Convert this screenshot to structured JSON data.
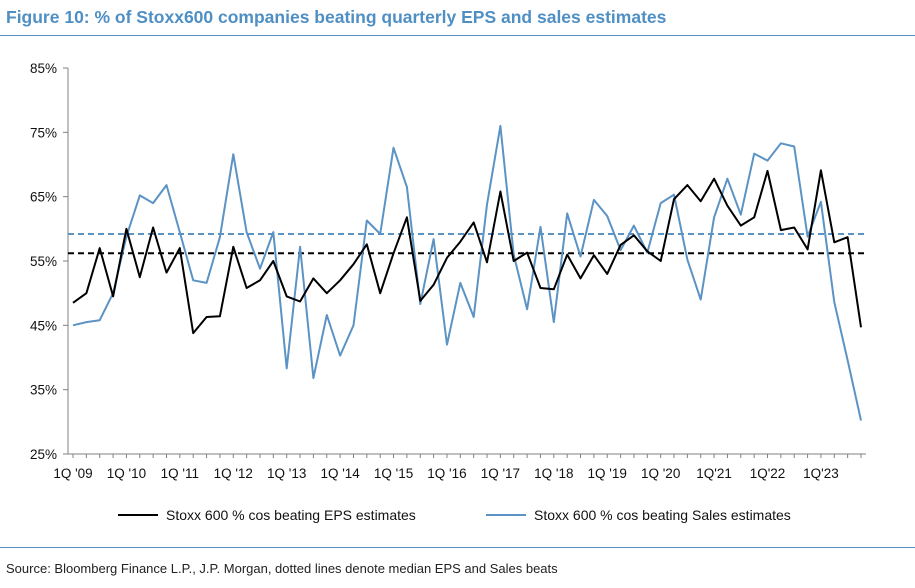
{
  "title": "Figure 10: % of Stoxx600 companies beating quarterly EPS and sales estimates",
  "source": "Source: Bloomberg Finance L.P., J.P. Morgan, dotted lines denote median EPS and Sales beats",
  "colors": {
    "eps": "#000000",
    "sales": "#5b93c4",
    "title": "#4f8fc4"
  },
  "chart_data": {
    "type": "line",
    "title": "Figure 10: % of Stoxx600 companies beating quarterly EPS and sales estimates",
    "xlabel": "",
    "ylabel": "",
    "ylim": [
      25,
      85
    ],
    "yticks": [
      "25%",
      "35%",
      "45%",
      "55%",
      "65%",
      "75%",
      "85%"
    ],
    "xticks": [
      "1Q '09",
      "1Q '10",
      "1Q '11",
      "1Q '12",
      "1Q '13",
      "1Q '14",
      "1Q '15",
      "1Q '16",
      "1Q '17",
      "1Q '18",
      "1Q '19",
      "1Q '20",
      "1Q'21",
      "1Q'22",
      "1Q'23"
    ],
    "legend_position": "bottom",
    "grid": false,
    "series": [
      {
        "name": "Stoxx 600 % cos beating EPS estimates",
        "color": "#000000",
        "values": [
          48.5,
          50,
          57,
          49.5,
          60,
          52.5,
          60.2,
          53.2,
          57,
          43.8,
          46.3,
          46.4,
          57.2,
          50.8,
          52,
          55,
          49.5,
          48.7,
          52.3,
          50,
          52,
          54.5,
          57.6,
          50,
          56.2,
          61.8,
          48.8,
          51.3,
          55.5,
          58,
          61,
          54.8,
          65.8,
          55,
          56.3,
          50.8,
          50.6,
          56,
          52.3,
          55.9,
          53,
          57.5,
          59,
          56.5,
          55,
          64.6,
          66.8,
          64.3,
          67.8,
          63.6,
          60.5,
          61.8,
          69,
          59.8,
          60.2,
          56.8,
          69.1,
          57.9,
          58.7,
          44.7
        ]
      },
      {
        "name": "Stoxx 600 % cos beating Sales estimates",
        "color": "#5b93c4",
        "values": [
          45,
          45.5,
          45.8,
          50,
          58.8,
          65.2,
          64,
          66.8,
          59.5,
          52,
          51.6,
          58.7,
          71.6,
          59.5,
          53.8,
          59.5,
          38.3,
          57.2,
          36.8,
          46.6,
          40.3,
          45,
          61.3,
          59.2,
          72.6,
          66.5,
          48.3,
          58.4,
          42,
          51.6,
          46.3,
          63.8,
          76,
          56,
          47.5,
          60.3,
          45.5,
          62.4,
          55.7,
          64.5,
          62,
          56.7,
          60.5,
          56.3,
          64,
          65.3,
          55.2,
          49,
          61.8,
          67.8,
          62.2,
          71.7,
          70.6,
          73.3,
          72.8,
          58.8,
          64.2,
          48.6,
          39.6,
          30.2
        ]
      }
    ],
    "reference_lines": [
      {
        "label": "median EPS beats",
        "value": 56.2,
        "color": "#000000"
      },
      {
        "label": "median Sales beats",
        "value": 59.2,
        "color": "#5b93c4"
      }
    ]
  }
}
